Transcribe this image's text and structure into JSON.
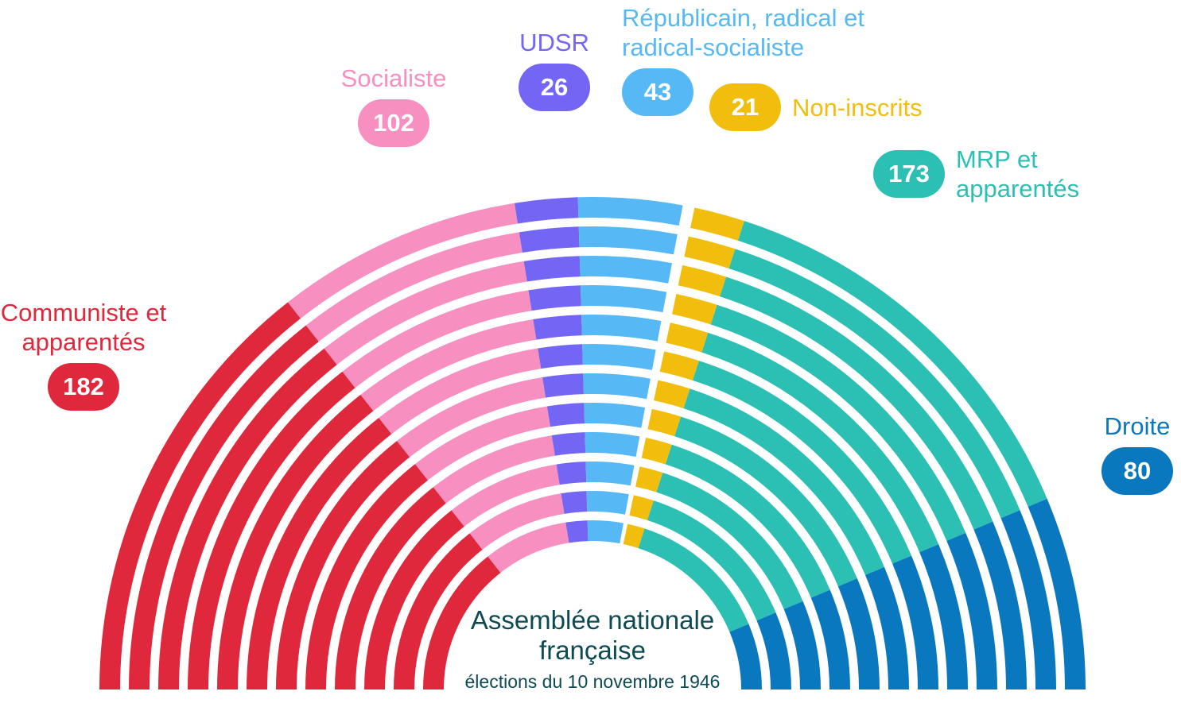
{
  "chart_data": {
    "type": "parliament",
    "title": "Assemblée nationale française",
    "subtitle": "élections du 10 novembre 1946",
    "categories": [
      "Communiste et apparentés",
      "Socialiste",
      "UDSR",
      "Républicain, radical et radical-socialiste",
      "Non-inscrits",
      "MRP et apparentés",
      "Droite"
    ],
    "values": [
      182,
      102,
      26,
      43,
      21,
      173,
      80
    ],
    "colors": [
      "#e0283c",
      "#f78fc0",
      "#7466f5",
      "#56b9f5",
      "#f2be0e",
      "#2cc0b4",
      "#0a78bf"
    ]
  }
}
